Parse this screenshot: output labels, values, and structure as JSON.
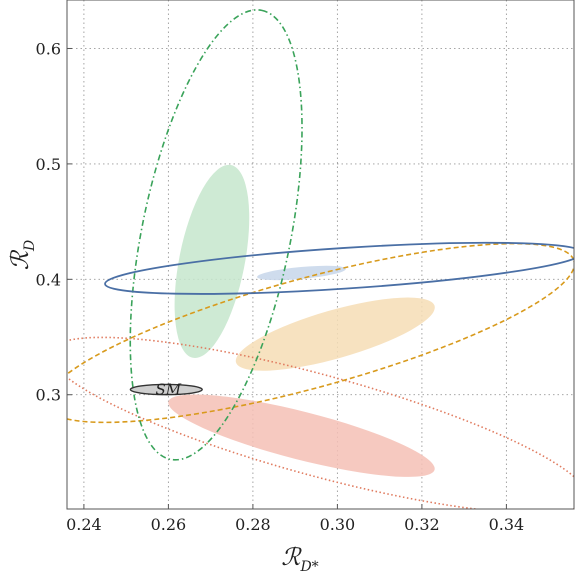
{
  "chart_data": {
    "type": "scatter",
    "title": "",
    "xlabel": "R_D*",
    "ylabel": "R_D",
    "x_label_parts": {
      "main": "ℛ",
      "sub": "D*"
    },
    "y_label_parts": {
      "main": "ℛ",
      "sub": "D"
    },
    "xlim": [
      0.236,
      0.356
    ],
    "ylim": [
      0.201,
      0.642
    ],
    "grid": true,
    "x_ticks": [
      0.24,
      0.26,
      0.28,
      0.3,
      0.32,
      0.34
    ],
    "x_tick_labels": [
      "0.24",
      "0.26",
      "0.28",
      "0.30",
      "0.32",
      "0.34"
    ],
    "y_ticks": [
      0.3,
      0.4,
      0.5,
      0.6
    ],
    "y_tick_labels": [
      "0.3",
      "0.4",
      "0.5",
      "0.6"
    ],
    "regions": [
      {
        "color": "#e07b5f",
        "fill": "#f4c0b5",
        "line_style": "dotted",
        "core": {
          "cx": 0.2915,
          "cy": 0.2645,
          "a": 0.0315,
          "b": 0.0055,
          "angle_data": [
            0.0315,
            -0.0295
          ]
        },
        "outer": {
          "cx": 0.2955,
          "cy": 0.2735,
          "a": 0.0635,
          "b": 0.0115,
          "angle_data": [
            0.0635,
            -0.0635
          ]
        }
      },
      {
        "color": "#d89a1c",
        "fill": "#f6ddb5",
        "line_style": "dashed",
        "core": {
          "cx": 0.2995,
          "cy": 0.3525,
          "a": 0.0235,
          "b": 0.0055,
          "angle_data": [
            0.0235,
            0.0245
          ]
        },
        "outer": {
          "cx": 0.2935,
          "cy": 0.3535,
          "a": 0.0625,
          "b": 0.0125,
          "angle_data": [
            0.0625,
            0.0625
          ]
        }
      },
      {
        "color": "#3aa35a",
        "fill": "#c5e6cd",
        "line_style": "dash-dot",
        "core": {
          "cx": 0.2703,
          "cy": 0.4155,
          "a": 0.0045,
          "b": 0.0015,
          "angle_data": [
            0.0045,
            0.0835
          ]
        },
        "outer": {
          "cx": 0.2713,
          "cy": 0.4385,
          "a": 0.0108,
          "b": 0.0035,
          "angle_data": [
            0.0108,
            0.1945
          ]
        }
      },
      {
        "color": "#4a6fa5",
        "fill": "#c7d6ea",
        "line_style": "solid",
        "core": {
          "cx": 0.2915,
          "cy": 0.4055,
          "a": 0.0105,
          "b": 0.0014,
          "angle_data": [
            0.0105,
            0.0035
          ]
        },
        "outer": {
          "cx": 0.3015,
          "cy": 0.4095,
          "a": 0.0565,
          "b": 0.0048,
          "angle_data": [
            0.0565,
            0.0135
          ]
        }
      }
    ],
    "sm_point": {
      "label": "SM",
      "cx": 0.2595,
      "cy": 0.3045,
      "a": 0.0085,
      "b": 0.0044,
      "fill": "#cfcfcf",
      "stroke": "#333333"
    }
  }
}
